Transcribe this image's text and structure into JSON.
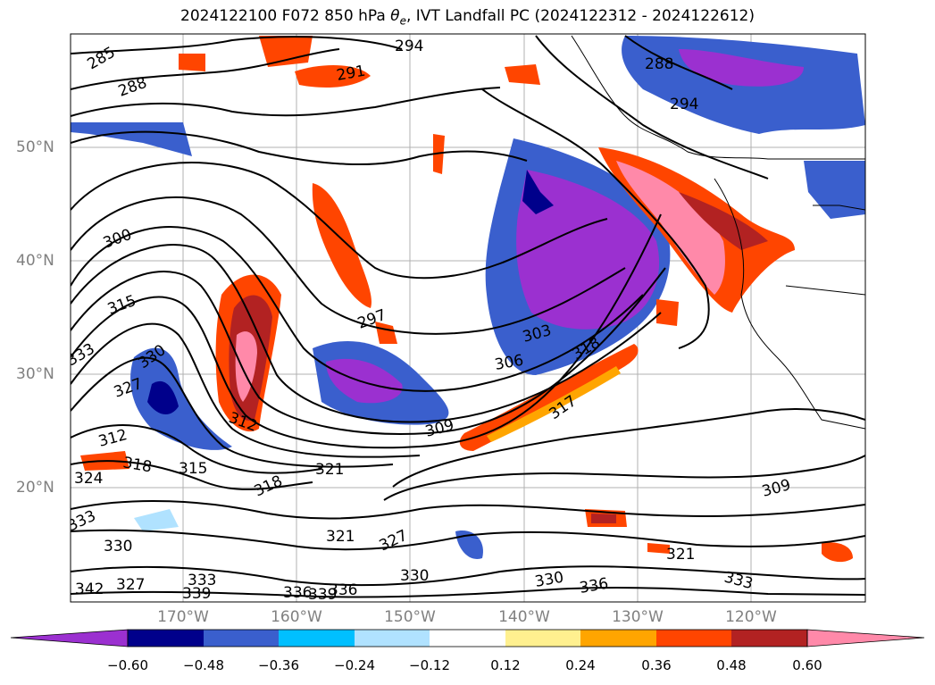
{
  "title": "2024122100 F072 850 hPa θe, IVT Landfall PC (2024122312 - 2024122612)",
  "title_parts": {
    "prefix": "2024122100 F072 850 hPa ",
    "theta": "θ",
    "sub": "e",
    "suffix": ", IVT Landfall PC (2024122312 - 2024122612)"
  },
  "lat_labels": [
    "50°N",
    "40°N",
    "30°N",
    "20°N"
  ],
  "lon_labels": [
    "170°W",
    "160°W",
    "150°W",
    "140°W",
    "130°W",
    "120°W"
  ],
  "colorbar": {
    "ticks": [
      "−0.60",
      "−0.48",
      "−0.36",
      "−0.24",
      "−0.12",
      "0.12",
      "0.24",
      "0.36",
      "0.48",
      "0.60"
    ],
    "colors": [
      "#9b30d0",
      "#00008b",
      "#3a5fcd",
      "#00bfff",
      "#b0e2ff",
      "#ffffff",
      "#fff08f",
      "#ffa500",
      "#ff4500",
      "#b22222",
      "#ff89a9"
    ]
  },
  "contour_labels": [
    "285",
    "288",
    "291",
    "294",
    "288",
    "294",
    "300",
    "315",
    "297",
    "303",
    "306",
    "318",
    "330",
    "333",
    "327",
    "312",
    "318",
    "315",
    "324",
    "321",
    "318",
    "309",
    "317",
    "312",
    "309",
    "321",
    "327",
    "330",
    "333",
    "336",
    "339",
    "330",
    "336",
    "321",
    "330",
    "333",
    "342",
    "339",
    "336",
    "327",
    "333"
  ]
}
